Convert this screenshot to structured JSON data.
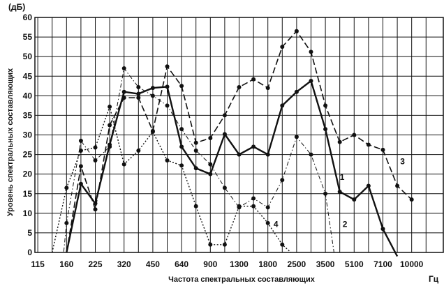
{
  "chart_data": {
    "type": "line",
    "xlabel": "Частота спектральных составляющих",
    "x_unit": "Гц",
    "ylabel": "Уровень спектральных составляющих",
    "y_unit": "(дБ)",
    "ylim": [
      0,
      60
    ],
    "yticks": [
      "0",
      "5",
      "10",
      "15",
      "20",
      "25",
      "30",
      "35",
      "40",
      "45",
      "50",
      "55",
      "60"
    ],
    "grid": true,
    "categories": [
      "115",
      "160",
      "225",
      "320",
      "450",
      "640",
      "900",
      "1300",
      "1800",
      "2500",
      "3500",
      "5100",
      "7100",
      "10000"
    ],
    "series": [
      {
        "name": "1",
        "style": "solid-bold",
        "points": [
          {
            "x": 1.0,
            "y": 0
          },
          {
            "x": 1.5,
            "y": 17.5
          },
          {
            "x": 2.0,
            "y": 12.5
          },
          {
            "x": 2.5,
            "y": 27.5
          },
          {
            "x": 3.0,
            "y": 41
          },
          {
            "x": 3.5,
            "y": 40.5
          },
          {
            "x": 4.0,
            "y": 42
          },
          {
            "x": 4.5,
            "y": 42.3
          },
          {
            "x": 5.0,
            "y": 27
          },
          {
            "x": 5.5,
            "y": 21.5
          },
          {
            "x": 6.0,
            "y": 20
          },
          {
            "x": 6.5,
            "y": 30.2
          },
          {
            "x": 7.0,
            "y": 25
          },
          {
            "x": 7.5,
            "y": 27
          },
          {
            "x": 8.0,
            "y": 25
          },
          {
            "x": 8.5,
            "y": 37.5
          },
          {
            "x": 9.0,
            "y": 41
          },
          {
            "x": 9.5,
            "y": 43.8
          },
          {
            "x": 10.0,
            "y": 31.5
          },
          {
            "x": 10.5,
            "y": 15.5
          },
          {
            "x": 11.0,
            "y": 13.5
          },
          {
            "x": 11.5,
            "y": 17
          },
          {
            "x": 12.0,
            "y": 6
          },
          {
            "x": 12.5,
            "y": -1
          }
        ]
      },
      {
        "name": "2",
        "style": "dashed",
        "points": [
          {
            "x": 0.6,
            "y": 0
          },
          {
            "x": 0.9,
            "y": 0
          },
          {
            "x": 1.0,
            "y": 7.5
          },
          {
            "x": 1.5,
            "y": 28.5
          },
          {
            "x": 2.0,
            "y": 23.5
          },
          {
            "x": 2.5,
            "y": 27
          },
          {
            "x": 3.0,
            "y": 47
          },
          {
            "x": 3.5,
            "y": 42.2
          },
          {
            "x": 4.0,
            "y": 40
          },
          {
            "x": 4.5,
            "y": 37.5
          },
          {
            "x": 5.0,
            "y": 31.5
          },
          {
            "x": 5.5,
            "y": 26
          },
          {
            "x": 6.0,
            "y": 22.5
          },
          {
            "x": 6.5,
            "y": 16.5
          },
          {
            "x": 7.0,
            "y": 11.5
          },
          {
            "x": 7.5,
            "y": 13.8
          },
          {
            "x": 8.0,
            "y": 11.5
          },
          {
            "x": 8.5,
            "y": 18.5
          },
          {
            "x": 9.0,
            "y": 29.5
          },
          {
            "x": 9.5,
            "y": 25
          },
          {
            "x": 10.0,
            "y": 15
          },
          {
            "x": 10.3,
            "y": 0
          }
        ]
      },
      {
        "name": "3",
        "style": "long-dashed",
        "points": [
          {
            "x": 1.0,
            "y": 0
          },
          {
            "x": 1.5,
            "y": 22
          },
          {
            "x": 2.0,
            "y": 11
          },
          {
            "x": 2.5,
            "y": 32.5
          },
          {
            "x": 3.0,
            "y": 39.5
          },
          {
            "x": 3.5,
            "y": 39.5
          },
          {
            "x": 4.0,
            "y": 31
          },
          {
            "x": 4.5,
            "y": 47.5
          },
          {
            "x": 5.0,
            "y": 42.5
          },
          {
            "x": 5.5,
            "y": 28
          },
          {
            "x": 6.0,
            "y": 29.2
          },
          {
            "x": 6.5,
            "y": 35
          },
          {
            "x": 7.0,
            "y": 42.2
          },
          {
            "x": 7.5,
            "y": 44.2
          },
          {
            "x": 8.0,
            "y": 42
          },
          {
            "x": 8.5,
            "y": 52.5
          },
          {
            "x": 9.0,
            "y": 56.5
          },
          {
            "x": 9.5,
            "y": 51.2
          },
          {
            "x": 10.0,
            "y": 37.5
          },
          {
            "x": 10.5,
            "y": 28.2
          },
          {
            "x": 11.0,
            "y": 30
          },
          {
            "x": 11.5,
            "y": 27.5
          },
          {
            "x": 12.0,
            "y": 26.2
          },
          {
            "x": 12.5,
            "y": 17
          },
          {
            "x": 13.0,
            "y": 13.5
          }
        ]
      },
      {
        "name": "4",
        "style": "dotted",
        "points": [
          {
            "x": 0.5,
            "y": 0
          },
          {
            "x": 1.0,
            "y": 16.5
          },
          {
            "x": 1.5,
            "y": 26
          },
          {
            "x": 2.0,
            "y": 26.8
          },
          {
            "x": 2.5,
            "y": 37.2
          },
          {
            "x": 3.0,
            "y": 22.5
          },
          {
            "x": 3.5,
            "y": 26
          },
          {
            "x": 4.0,
            "y": 30.8
          },
          {
            "x": 4.5,
            "y": 23.5
          },
          {
            "x": 5.0,
            "y": 22.2
          },
          {
            "x": 5.5,
            "y": 11.8
          },
          {
            "x": 6.0,
            "y": 2
          },
          {
            "x": 6.5,
            "y": 2
          },
          {
            "x": 7.0,
            "y": 11.8
          },
          {
            "x": 7.5,
            "y": 11.8
          },
          {
            "x": 8.0,
            "y": 7.5
          },
          {
            "x": 8.5,
            "y": 2
          },
          {
            "x": 8.8,
            "y": 0
          }
        ]
      }
    ],
    "series_label_positions": [
      {
        "name": "1",
        "x": 10.5,
        "y": 18.5
      },
      {
        "name": "2",
        "x": 10.6,
        "y": 6.5
      },
      {
        "name": "3",
        "x": 12.6,
        "y": 22.5
      },
      {
        "name": "4",
        "x": 8.2,
        "y": 6.5
      }
    ]
  }
}
